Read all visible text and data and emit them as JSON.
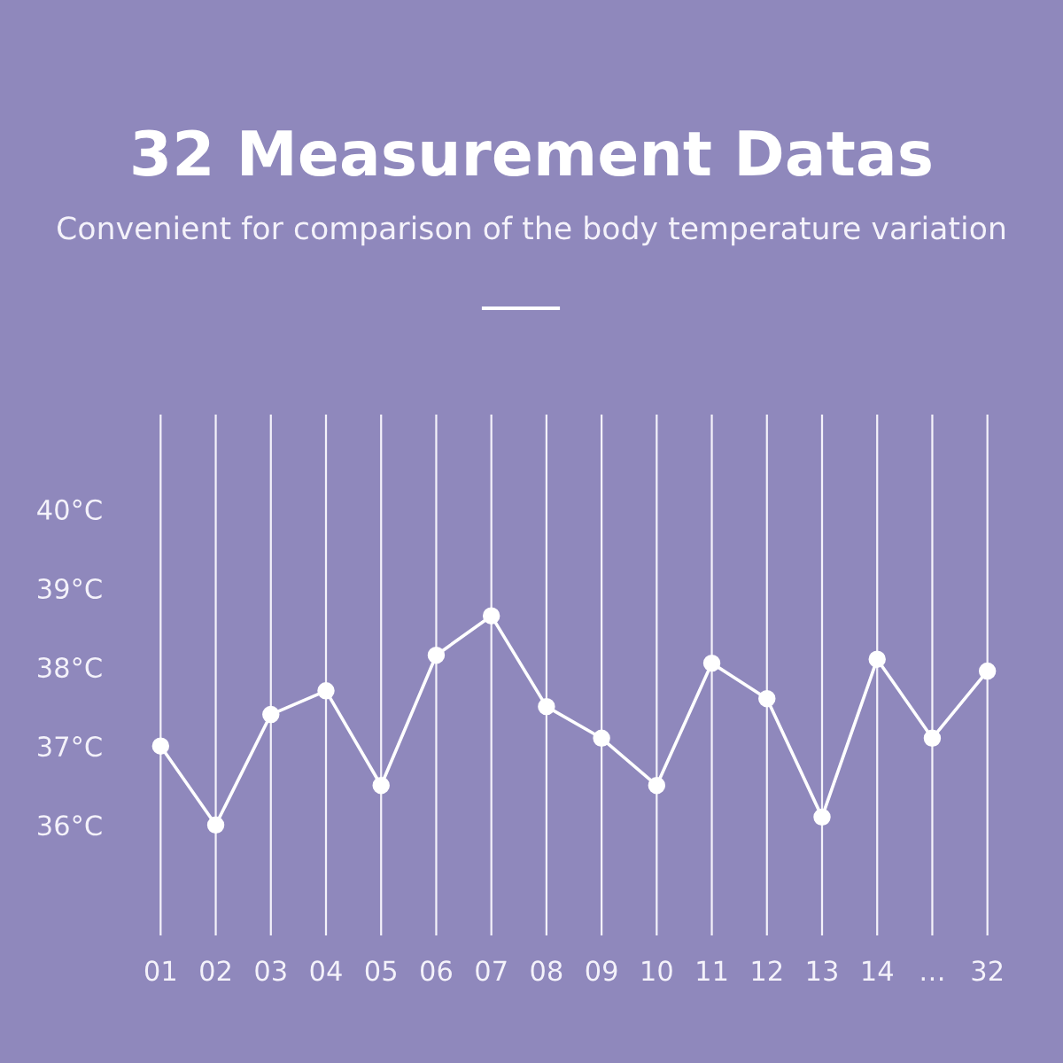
{
  "chart_data": {
    "type": "line",
    "title": "32 Measurement Datas",
    "subtitle": "Convenient for comparison of the body temperature variation",
    "categories": [
      "01",
      "02",
      "03",
      "04",
      "05",
      "06",
      "07",
      "08",
      "09",
      "10",
      "11",
      "12",
      "13",
      "14",
      "…",
      "32"
    ],
    "series": [
      {
        "color": "#ffffff",
        "values": [
          37.0,
          36.0,
          37.4,
          37.7,
          36.5,
          38.15,
          38.65,
          37.5,
          37.1,
          36.5,
          38.05,
          37.6,
          36.1,
          38.1,
          37.1,
          37.95
        ]
      }
    ],
    "ylim": [
      34.6,
      41.2
    ],
    "yticks": [
      {
        "value": 36,
        "label": "36°C"
      },
      {
        "value": 37,
        "label": "37°C"
      },
      {
        "value": 38,
        "label": "38°C"
      },
      {
        "value": 39,
        "label": "39°C"
      },
      {
        "value": 40,
        "label": "40°C"
      }
    ],
    "grid": "x",
    "marker": "circle",
    "line_style": "solid"
  }
}
